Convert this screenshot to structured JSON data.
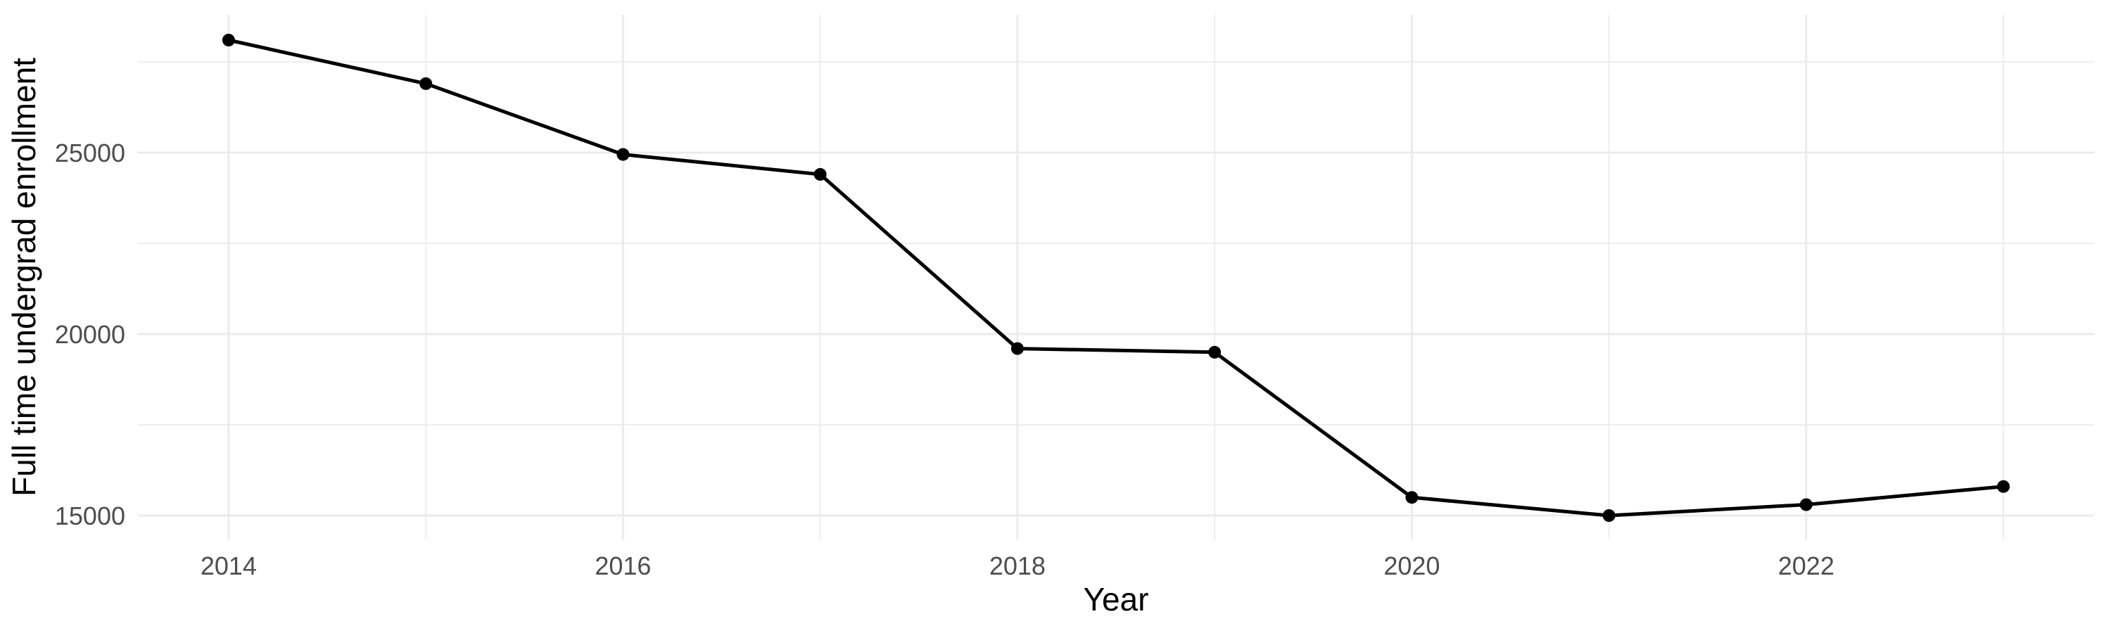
{
  "chart_data": {
    "type": "line",
    "title": "",
    "xlabel": "Year",
    "ylabel": "Full time undergrad enrollment",
    "x": [
      2014,
      2015,
      2016,
      2017,
      2018,
      2019,
      2020,
      2021,
      2022,
      2023
    ],
    "series": [
      {
        "name": "Full time undergrad enrollment",
        "values": [
          28100,
          26900,
          24950,
          24400,
          19600,
          19500,
          15500,
          15000,
          15300,
          15800
        ]
      }
    ],
    "x_ticks": [
      2014,
      2016,
      2018,
      2020,
      2022
    ],
    "x_tick_labels": [
      "2014",
      "2016",
      "2018",
      "2020",
      "2022"
    ],
    "x_minor_gridlines": [
      2015,
      2017,
      2019,
      2021,
      2023
    ],
    "y_ticks": [
      15000,
      20000,
      25000
    ],
    "y_tick_labels": [
      "15000",
      "20000",
      "25000"
    ],
    "y_minor_gridlines": [
      17500,
      22500,
      27500
    ],
    "xlim": [
      2013.54,
      2023.46
    ],
    "ylim": [
      14341,
      28798
    ],
    "grid": "major+minor",
    "legend": "none",
    "point_marker": "filled-circle",
    "colors": {
      "line": "#000000",
      "point": "#000000",
      "grid": "#EBEBEB",
      "tick_label_text": "#4D4D4D",
      "axis_title_text": "#000000",
      "background": "#FFFFFF"
    }
  }
}
